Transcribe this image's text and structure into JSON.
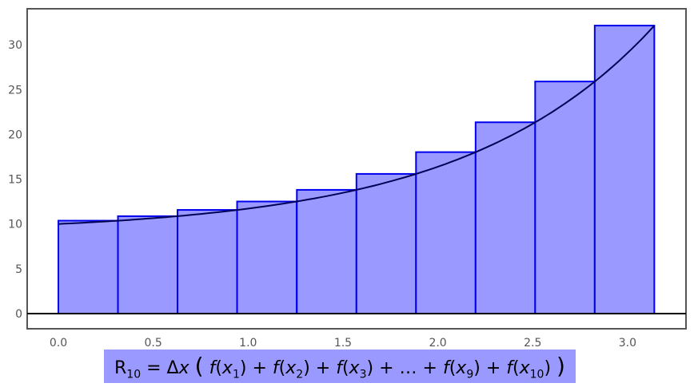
{
  "chart_data": {
    "type": "bar",
    "description_kind": "right Riemann sum with curve",
    "x_left_edges": [
      0.0,
      0.314,
      0.628,
      0.942,
      1.257,
      1.571,
      1.885,
      2.199,
      2.513,
      2.827
    ],
    "bar_width": 0.314,
    "values": [
      10.37,
      10.87,
      11.57,
      12.51,
      13.81,
      15.59,
      18.02,
      21.35,
      25.9,
      32.14
    ],
    "curve": {
      "x": [
        0,
        0.314,
        0.628,
        0.942,
        1.257,
        1.571,
        1.885,
        2.199,
        2.513,
        2.827,
        3.1416
      ],
      "y": [
        10.0,
        10.37,
        10.87,
        11.57,
        12.51,
        13.81,
        15.59,
        18.02,
        21.35,
        25.9,
        32.14
      ]
    },
    "xlim": [
      -0.16,
      3.3
    ],
    "ylim": [
      -1.6,
      34
    ],
    "x_ticks": [
      "0.0",
      "0.5",
      "1.0",
      "1.5",
      "2.0",
      "2.5",
      "3.0"
    ],
    "y_ticks": [
      "0",
      "5",
      "10",
      "15",
      "20",
      "25",
      "30"
    ],
    "grid": false,
    "colors": {
      "bar_fill": "#9999ff",
      "bar_stroke": "#0000ee",
      "curve": "#000055",
      "frame": "#555555"
    }
  },
  "formula": {
    "lhs": "R",
    "lhs_sub": "10",
    "eq": "= Δ",
    "dx": "x",
    "open": "(",
    "close": ")",
    "terms": [
      {
        "f": "f",
        "x": "x",
        "sub": "1"
      },
      {
        "f": "f",
        "x": "x",
        "sub": "2"
      },
      {
        "f": "f",
        "x": "x",
        "sub": "3"
      },
      {
        "f": "f",
        "x": "x",
        "sub": "9"
      },
      {
        "f": "f",
        "x": "x",
        "sub": "10"
      }
    ],
    "ellipsis": "…",
    "plus": "+"
  }
}
